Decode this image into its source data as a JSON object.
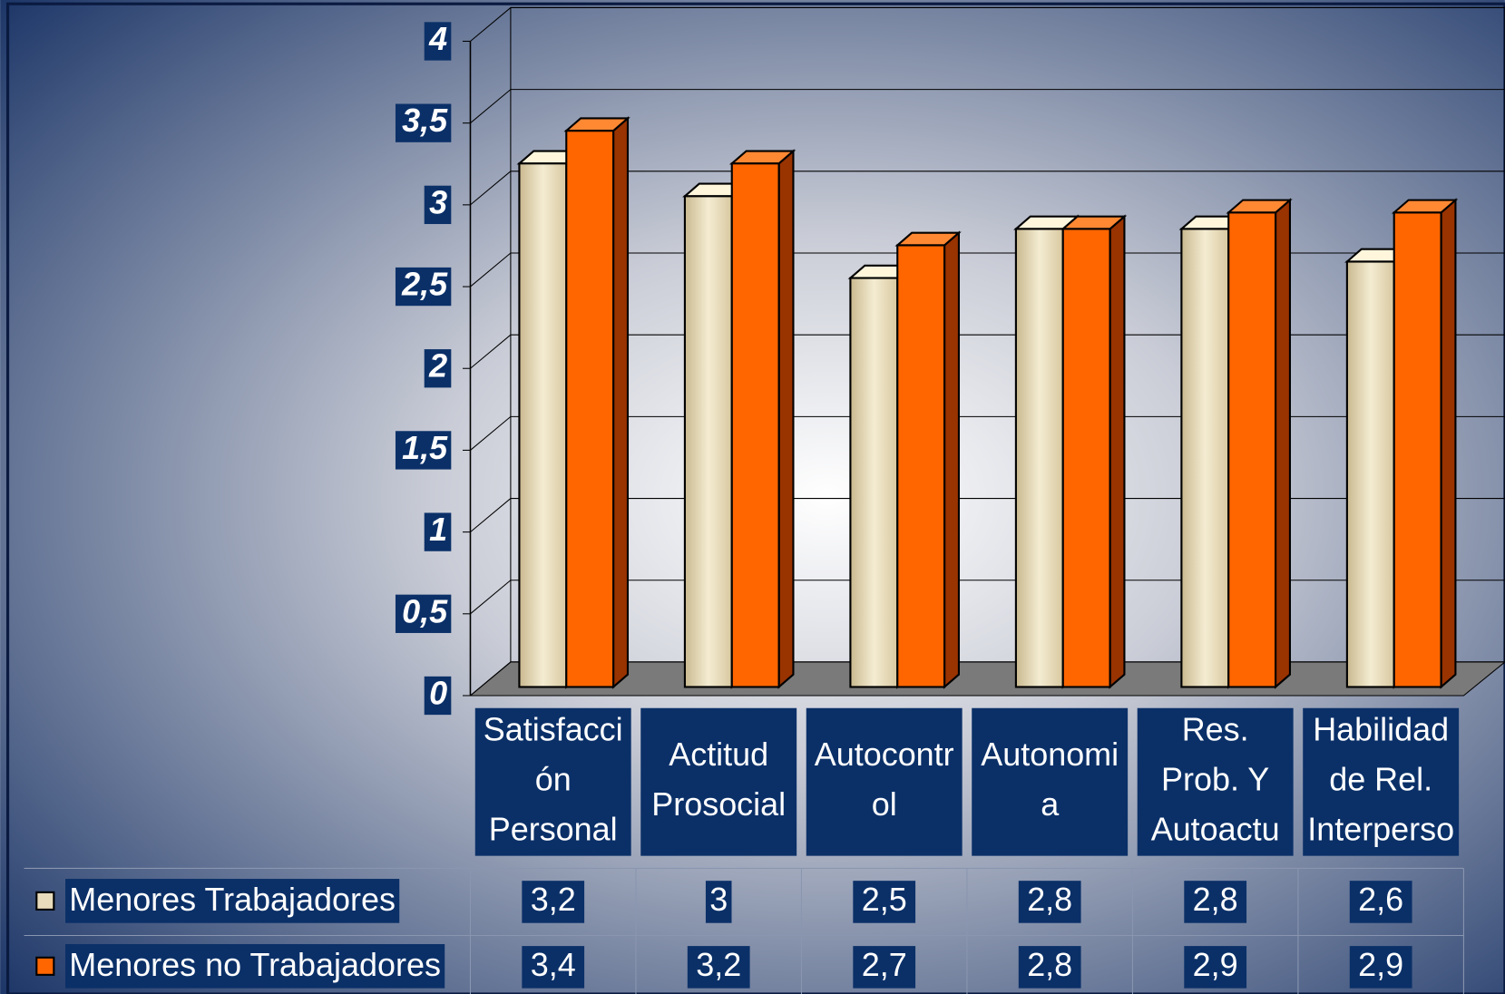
{
  "chart_data": {
    "type": "bar3d",
    "categories": [
      [
        "Satisfacci",
        "ón",
        "Personal"
      ],
      [
        "Actitud",
        "Prosocial"
      ],
      [
        "Autocontr",
        "ol"
      ],
      [
        "Autonomi",
        "a"
      ],
      [
        "Res.",
        "Prob. Y",
        "Autoactu"
      ],
      [
        "Habilidad",
        "de Rel.",
        "Interperso"
      ]
    ],
    "series": [
      {
        "name": "Menores Trabajadores",
        "color": "#e8dcbc",
        "values": [
          3.2,
          3,
          2.5,
          2.8,
          2.8,
          2.6
        ],
        "value_labels": [
          "3,2",
          "3",
          "2,5",
          "2,8",
          "2,8",
          "2,6"
        ]
      },
      {
        "name": "Menores no Trabajadores",
        "color": "#ff6600",
        "values": [
          3.4,
          3.2,
          2.7,
          2.8,
          2.9,
          2.9
        ],
        "value_labels": [
          "3,4",
          "3,2",
          "2,7",
          "2,8",
          "2,9",
          "2,9"
        ]
      }
    ],
    "ylim": [
      0,
      4
    ],
    "yticks": [
      0,
      {
        "value": 0.5,
        "label": "0,5"
      },
      1,
      {
        "value": 1.5,
        "label": "1,5"
      },
      2,
      {
        "value": 2.5,
        "label": "2,5"
      },
      3,
      {
        "value": 3.5,
        "label": "3,5"
      },
      4
    ],
    "grid": true
  }
}
